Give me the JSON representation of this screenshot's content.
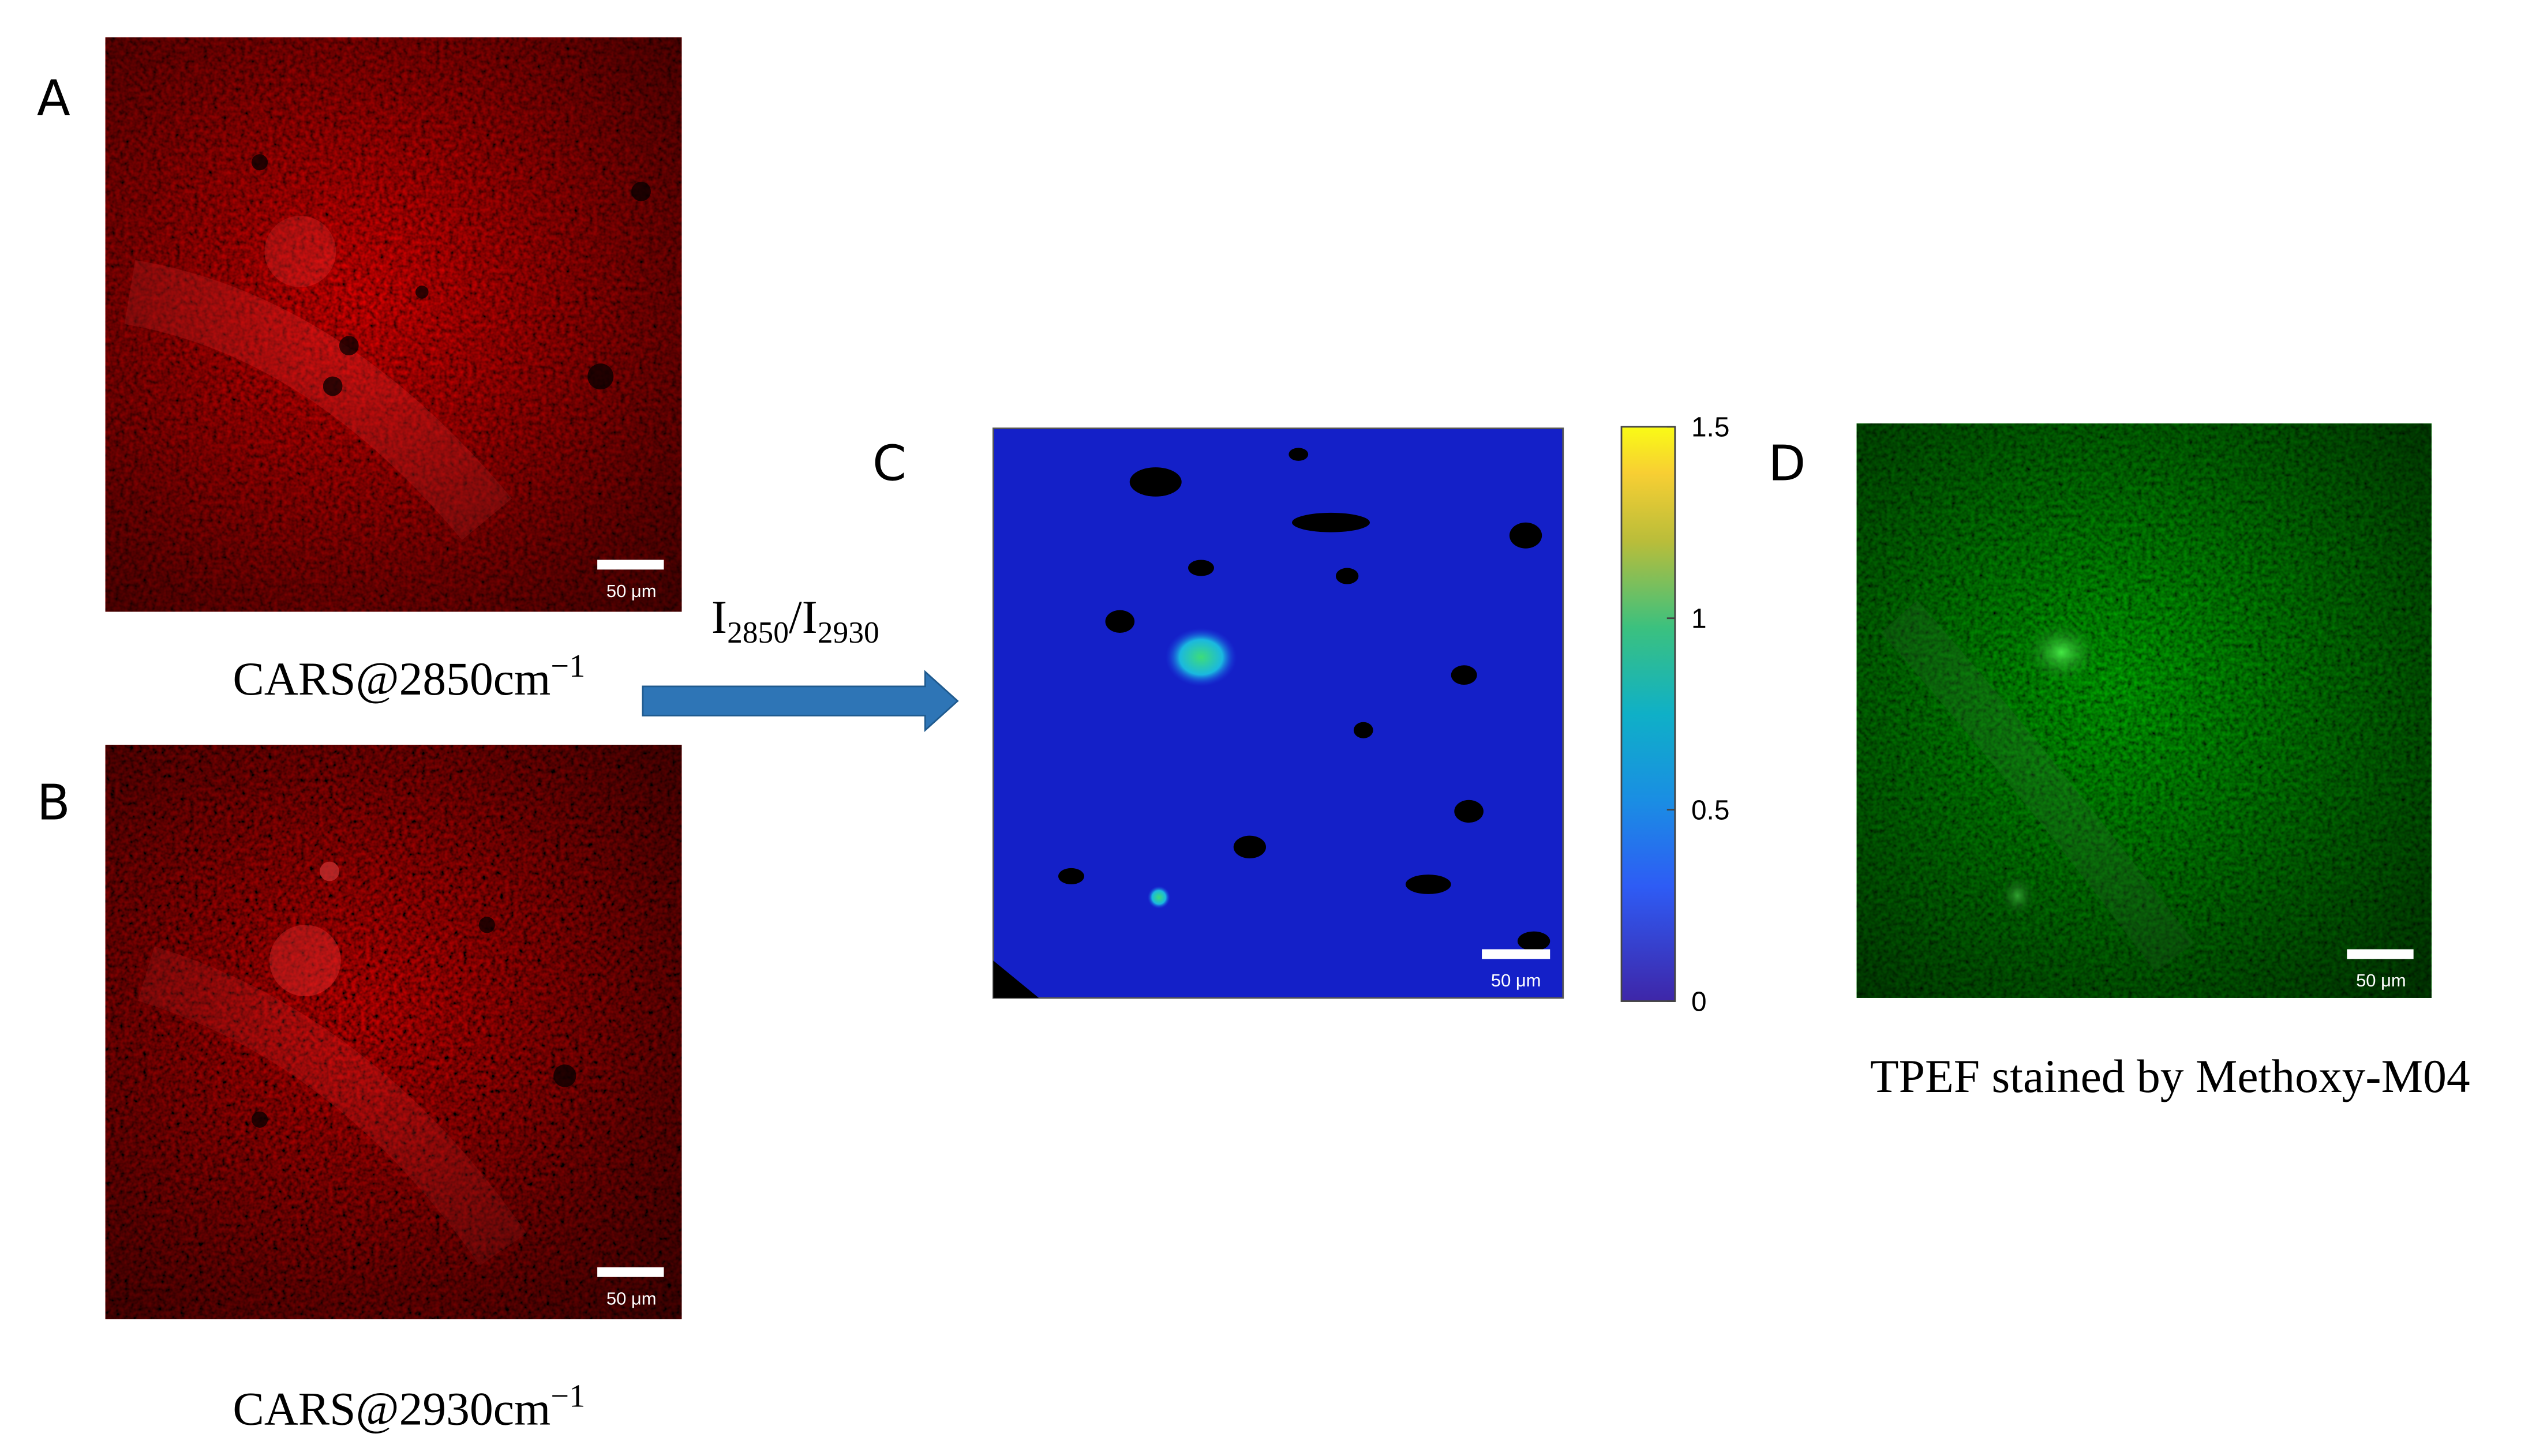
{
  "panels": [
    {
      "label": "A",
      "caption": {
        "text": "CARS@2850cm",
        "sup": "−1"
      },
      "scale_bar": "50 μm"
    },
    {
      "label": "B",
      "caption": {
        "text": "CARS@2930cm",
        "sup": "−1"
      },
      "scale_bar": "50 μm"
    },
    {
      "label": "C",
      "scale_bar": "50 μm"
    },
    {
      "label": "D",
      "caption": {
        "text": "TPEF stained by Methoxy-M04"
      },
      "scale_bar": "50 μm"
    }
  ],
  "ratio_label": {
    "num": "I",
    "num_sub": "2850",
    "sep": "/",
    "den": "I",
    "den_sub": "2930"
  },
  "colorbar": {
    "lim": [
      0,
      1.5
    ],
    "ticks": [
      0,
      0.5,
      1,
      1.5
    ]
  }
}
